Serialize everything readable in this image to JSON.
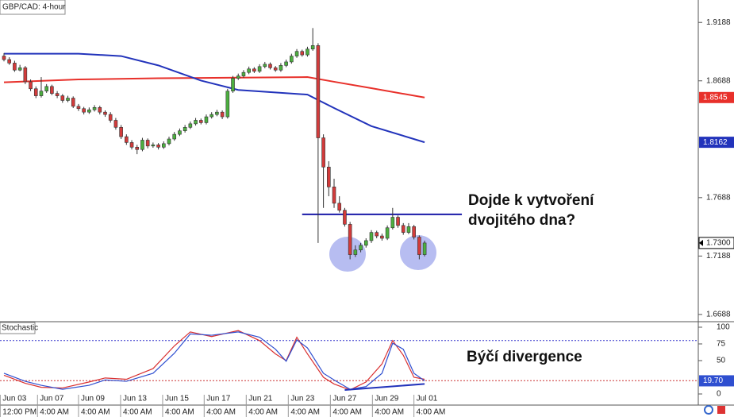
{
  "chart_data": {
    "type": "candlestick",
    "title": "GBP/CAD: 4-hour",
    "ylim": [
      1.6626,
      1.938
    ],
    "yticks": [
      1.6688,
      1.7188,
      1.7688,
      1.8688,
      1.9188
    ],
    "candles": [
      [
        1.89,
        1.8925,
        1.8855,
        1.887
      ],
      [
        1.887,
        1.889,
        1.8825,
        1.884
      ],
      [
        1.884,
        1.886,
        1.8765,
        1.878
      ],
      [
        1.878,
        1.8825,
        1.877,
        1.88
      ],
      [
        1.88,
        1.8815,
        1.866,
        1.868
      ],
      [
        1.868,
        1.87,
        1.86,
        1.862
      ],
      [
        1.862,
        1.864,
        1.854,
        1.856
      ],
      [
        1.856,
        1.872,
        1.8545,
        1.86
      ],
      [
        1.86,
        1.866,
        1.8585,
        1.864
      ],
      [
        1.864,
        1.8655,
        1.8565,
        1.858
      ],
      [
        1.858,
        1.86,
        1.854,
        1.856
      ],
      [
        1.856,
        1.8575,
        1.85,
        1.852
      ],
      [
        1.852,
        1.856,
        1.8505,
        1.854
      ],
      [
        1.854,
        1.8555,
        1.8455,
        1.847
      ],
      [
        1.847,
        1.849,
        1.843,
        1.845
      ],
      [
        1.845,
        1.8465,
        1.84,
        1.842
      ],
      [
        1.842,
        1.846,
        1.8405,
        1.844
      ],
      [
        1.844,
        1.848,
        1.8425,
        1.846
      ],
      [
        1.846,
        1.8475,
        1.84,
        1.842
      ],
      [
        1.842,
        1.8435,
        1.838,
        1.84
      ],
      [
        1.84,
        1.842,
        1.833,
        1.835
      ],
      [
        1.835,
        1.837,
        1.827,
        1.829
      ],
      [
        1.829,
        1.831,
        1.819,
        1.821
      ],
      [
        1.821,
        1.823,
        1.814,
        1.816
      ],
      [
        1.816,
        1.818,
        1.81,
        1.812
      ],
      [
        1.812,
        1.814,
        1.806,
        1.81
      ],
      [
        1.81,
        1.82,
        1.8085,
        1.818
      ],
      [
        1.818,
        1.8195,
        1.811,
        1.813
      ],
      [
        1.813,
        1.816,
        1.8115,
        1.814
      ],
      [
        1.814,
        1.8155,
        1.81,
        1.812
      ],
      [
        1.812,
        1.817,
        1.8105,
        1.815
      ],
      [
        1.815,
        1.821,
        1.8135,
        1.819
      ],
      [
        1.819,
        1.825,
        1.8175,
        1.823
      ],
      [
        1.823,
        1.828,
        1.8215,
        1.826
      ],
      [
        1.826,
        1.831,
        1.8245,
        1.829
      ],
      [
        1.829,
        1.834,
        1.8275,
        1.832
      ],
      [
        1.832,
        1.837,
        1.8305,
        1.835
      ],
      [
        1.835,
        1.8365,
        1.8315,
        1.833
      ],
      [
        1.833,
        1.84,
        1.8315,
        1.838
      ],
      [
        1.838,
        1.842,
        1.8365,
        1.84
      ],
      [
        1.84,
        1.844,
        1.8385,
        1.842
      ],
      [
        1.842,
        1.8435,
        1.836,
        1.838
      ],
      [
        1.838,
        1.862,
        1.8365,
        1.86
      ],
      [
        1.86,
        1.873,
        1.8585,
        1.871
      ],
      [
        1.871,
        1.875,
        1.8695,
        1.873
      ],
      [
        1.873,
        1.878,
        1.8715,
        1.876
      ],
      [
        1.876,
        1.881,
        1.8745,
        1.879
      ],
      [
        1.879,
        1.8805,
        1.8755,
        1.877
      ],
      [
        1.877,
        1.883,
        1.8755,
        1.881
      ],
      [
        1.881,
        1.885,
        1.8795,
        1.883
      ],
      [
        1.883,
        1.8845,
        1.8785,
        1.88
      ],
      [
        1.88,
        1.8815,
        1.8765,
        1.878
      ],
      [
        1.878,
        1.884,
        1.8765,
        1.882
      ],
      [
        1.882,
        1.887,
        1.8805,
        1.885
      ],
      [
        1.885,
        1.892,
        1.8835,
        1.89
      ],
      [
        1.89,
        1.896,
        1.8885,
        1.894
      ],
      [
        1.894,
        1.8955,
        1.8895,
        1.891
      ],
      [
        1.891,
        1.898,
        1.8895,
        1.896
      ],
      [
        1.896,
        1.914,
        1.8945,
        1.899
      ],
      [
        1.899,
        1.901,
        1.73,
        1.82
      ],
      [
        1.82,
        1.823,
        1.76,
        1.795
      ],
      [
        1.795,
        1.8,
        1.77,
        1.778
      ],
      [
        1.778,
        1.785,
        1.76,
        1.764
      ],
      [
        1.764,
        1.77,
        1.756,
        1.758
      ],
      [
        1.758,
        1.76,
        1.744,
        1.746
      ],
      [
        1.746,
        1.748,
        1.716,
        1.72
      ],
      [
        1.72,
        1.728,
        1.718,
        1.724
      ],
      [
        1.724,
        1.73,
        1.722,
        1.728
      ],
      [
        1.728,
        1.734,
        1.726,
        1.732
      ],
      [
        1.732,
        1.741,
        1.73,
        1.739
      ],
      [
        1.739,
        1.7405,
        1.734,
        1.736
      ],
      [
        1.736,
        1.738,
        1.732,
        1.734
      ],
      [
        1.734,
        1.745,
        1.7325,
        1.743
      ],
      [
        1.743,
        1.76,
        1.7415,
        1.752
      ],
      [
        1.752,
        1.7535,
        1.743,
        1.745
      ],
      [
        1.745,
        1.747,
        1.737,
        1.739
      ],
      [
        1.739,
        1.747,
        1.7375,
        1.744
      ],
      [
        1.744,
        1.7455,
        1.733,
        1.735
      ],
      [
        1.735,
        1.7365,
        1.716,
        1.72
      ],
      [
        1.72,
        1.732,
        1.7185,
        1.73
      ]
    ],
    "up_color": "#4caf3f",
    "down_color": "#d23b3b",
    "moving_averages": [
      {
        "color": "#e8302a",
        "x": [
          0,
          14,
          29,
          44,
          57,
          62,
          69,
          79
        ],
        "values": [
          1.8675,
          1.87,
          1.871,
          1.8715,
          1.872,
          1.868,
          1.8625,
          1.8545
        ]
      },
      {
        "color": "#2233bb",
        "x": [
          0,
          14,
          22,
          29,
          37,
          44,
          57,
          62,
          69,
          79
        ],
        "values": [
          1.892,
          1.892,
          1.89,
          1.882,
          1.869,
          1.861,
          1.857,
          1.8455,
          1.83,
          1.8162
        ]
      }
    ],
    "last_price": {
      "value": 1.73,
      "label": "1.7300"
    },
    "level": {
      "value": 1.7545,
      "from": 56,
      "to": 86,
      "color": "#1a1aa8"
    },
    "annotations": [
      "Dojde k vytvoření",
      "dvojitého dna?",
      "Býčí divergence"
    ],
    "xticks": [
      {
        "value": -0.7,
        "label": "Jun 03",
        "sublabel": "12:00 PM"
      },
      {
        "value": 6.3,
        "label": "Jun 07",
        "sublabel": "4:00 AM"
      },
      {
        "value": 14,
        "label": "Jun 09",
        "sublabel": "4:00 AM"
      },
      {
        "value": 21.9,
        "label": "Jun 13",
        "sublabel": "4:00 AM"
      },
      {
        "value": 29.8,
        "label": "Jun 15",
        "sublabel": "4:00 AM"
      },
      {
        "value": 37.6,
        "label": "Jun 17",
        "sublabel": "4:00 AM"
      },
      {
        "value": 45.5,
        "label": "Jun 21",
        "sublabel": "4:00 AM"
      },
      {
        "value": 53.4,
        "label": "Jun 23",
        "sublabel": "4:00 AM"
      },
      {
        "value": 61.3,
        "label": "Jun 27",
        "sublabel": "4:00 AM"
      },
      {
        "value": 69.2,
        "label": "Jun 29",
        "sublabel": "4:00 AM"
      },
      {
        "value": 77,
        "label": "Jul 01",
        "sublabel": "4:00 AM"
      }
    ],
    "indicator": {
      "title": "Stochastic",
      "ylim": [
        -10.7,
        108.3
      ],
      "yticks": [
        0,
        50,
        75,
        100
      ],
      "levels": [
        {
          "value": 80,
          "color": "#3333cc"
        },
        {
          "value": 20,
          "color": "#cc3333"
        }
      ],
      "series": [
        {
          "color": "#d93030",
          "x": [
            0,
            4,
            7,
            11,
            16,
            19,
            23,
            28,
            32,
            35,
            39,
            44,
            48,
            51,
            53,
            55,
            57,
            60,
            62,
            65,
            68,
            71,
            73,
            75,
            77,
            79
          ],
          "values": [
            28,
            16,
            10,
            9,
            18,
            24,
            22,
            38,
            72,
            93,
            86,
            95,
            80,
            60,
            50,
            85,
            60,
            25,
            15,
            6,
            18,
            45,
            80,
            58,
            25,
            22
          ]
        },
        {
          "color": "#2f4fd0",
          "x": [
            0,
            4,
            7,
            11,
            16,
            19,
            23,
            28,
            32,
            35,
            39,
            44,
            48,
            51,
            53,
            55,
            57,
            60,
            62,
            65,
            68,
            71,
            73,
            75,
            77,
            79
          ],
          "values": [
            31,
            19,
            13,
            7,
            13,
            21,
            19,
            31,
            61,
            90,
            88,
            93,
            85,
            67,
            49,
            81,
            69,
            31,
            21,
            7,
            11,
            31,
            76,
            67,
            31,
            19.7
          ]
        }
      ],
      "last_label": {
        "value": 19.7,
        "label": "19.70"
      }
    }
  }
}
